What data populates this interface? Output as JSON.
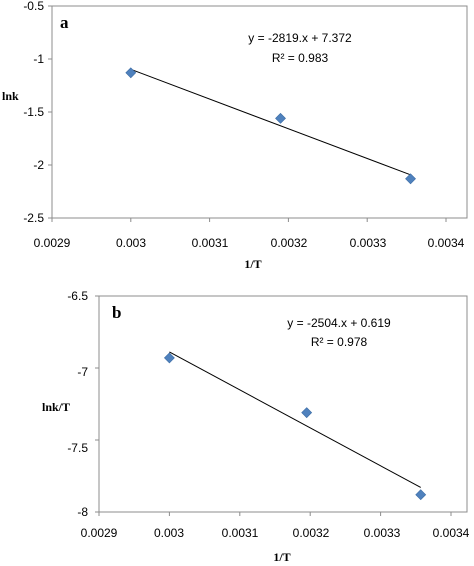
{
  "chart_data": [
    {
      "type": "scatter",
      "panel_label": "a",
      "xlabel": "1/T",
      "ylabel": "lnk",
      "xlim": [
        0.0029,
        0.0034
      ],
      "ylim": [
        -2.5,
        -0.5
      ],
      "x_ticks": [
        "0.0029",
        "0.003",
        "0.0031",
        "0.0032",
        "0.0033",
        "0.0034"
      ],
      "y_ticks": [
        "-0.5",
        "-1",
        "-1.5",
        "-2",
        "-2.5"
      ],
      "grid": false,
      "series": [
        {
          "x": [
            0.003,
            0.00319,
            0.003355
          ],
          "y": [
            -1.13,
            -1.56,
            -2.13
          ]
        }
      ],
      "trendline": {
        "slope": -2819,
        "intercept": 7.372,
        "x_range": [
          0.003,
          0.003355
        ]
      },
      "equation": "y = -2819.x + 7.372",
      "r_squared": "R² = 0.983",
      "marker_color": "#4f81bd"
    },
    {
      "type": "scatter",
      "panel_label": "b",
      "xlabel": "1/T",
      "ylabel": "lnk/T",
      "xlim": [
        0.0029,
        0.0034
      ],
      "ylim": [
        -8,
        -6.5
      ],
      "x_ticks": [
        "0.0029",
        "0.003",
        "0.0031",
        "0.0032",
        "0.0033",
        "0.0034"
      ],
      "y_ticks": [
        "-6.5",
        "-7",
        "-7.5",
        "-8"
      ],
      "grid": false,
      "series": [
        {
          "x": [
            0.003,
            0.003195,
            0.003357
          ],
          "y": [
            -6.93,
            -7.31,
            -7.88
          ]
        }
      ],
      "trendline": {
        "slope": -2504,
        "intercept": 0.619,
        "x_range": [
          0.003,
          0.003357
        ]
      },
      "equation": "y = -2504.x + 0.619",
      "r_squared": "R² = 0.978",
      "marker_color": "#4f81bd"
    }
  ]
}
